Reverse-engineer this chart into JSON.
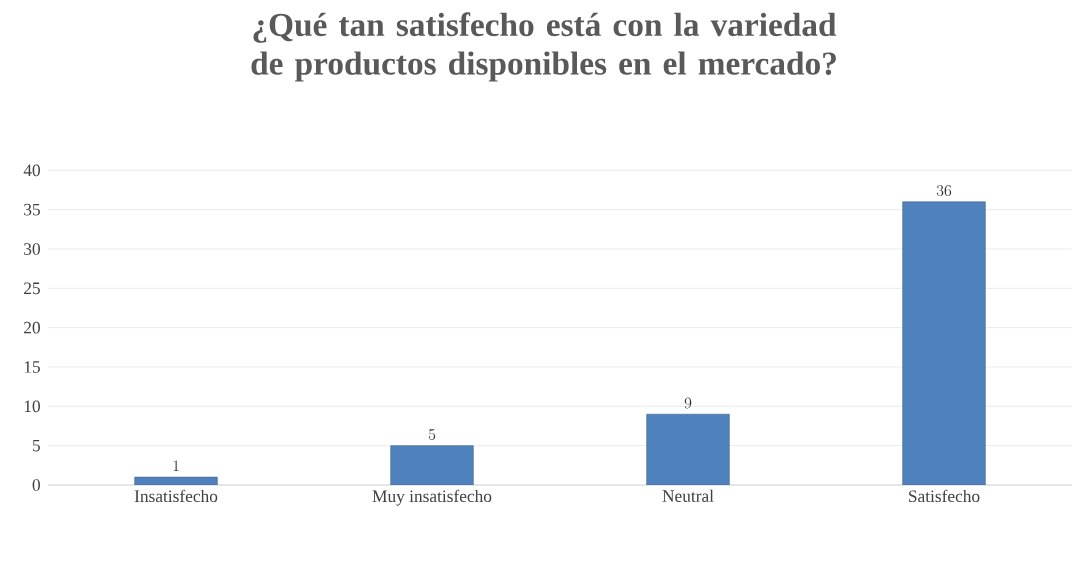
{
  "chart_data": {
    "type": "bar",
    "title": "¿Qué tan satisfecho está con la variedad de productos disponibles en el mercado?",
    "categories": [
      "Insatisfecho",
      "Muy insatisfecho",
      "Neutral",
      "Satisfecho"
    ],
    "values": [
      1,
      5,
      9,
      36
    ],
    "color": "#4f81bd",
    "ylim": [
      0,
      40
    ],
    "yticks": [
      0,
      5,
      10,
      15,
      20,
      25,
      30,
      35,
      40
    ],
    "grid": "y",
    "data_labels": true
  }
}
